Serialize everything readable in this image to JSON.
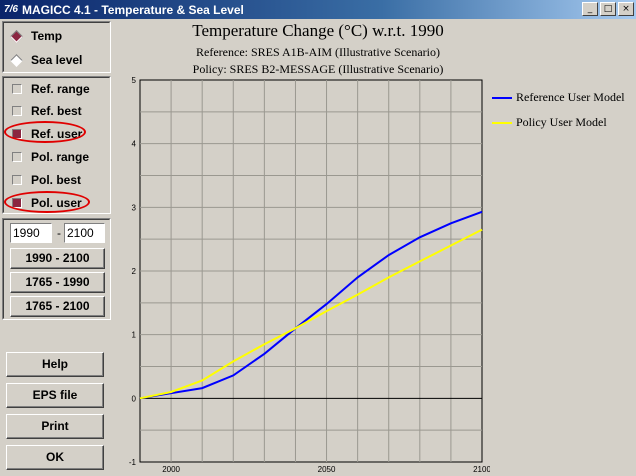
{
  "window": {
    "icon_text": "7/6",
    "title": "MAGICC 4.1 - Temperature & Sea Level",
    "min_glyph": "_",
    "max_glyph": "□",
    "close_glyph": "×"
  },
  "view_mode": {
    "options": [
      {
        "label": "Temp",
        "selected": true
      },
      {
        "label": "Sea level",
        "selected": false
      }
    ]
  },
  "series_toggles": [
    {
      "label": "Ref. range",
      "checked": false,
      "circled": false
    },
    {
      "label": "Ref. best",
      "checked": false,
      "circled": false
    },
    {
      "label": "Ref. user",
      "checked": true,
      "circled": true
    },
    {
      "label": "Pol. range",
      "checked": false,
      "circled": false
    },
    {
      "label": "Pol. best",
      "checked": false,
      "circled": false
    },
    {
      "label": "Pol. user",
      "checked": true,
      "circled": true
    }
  ],
  "year_range": {
    "start": "1990",
    "separator": "-",
    "end": "2100"
  },
  "range_buttons": [
    "1990 - 2100",
    "1765 - 1990",
    "1765 - 2100"
  ],
  "action_buttons": [
    "Help",
    "EPS file",
    "Print",
    "OK"
  ],
  "colors": {
    "reference": "#0000ff",
    "policy": "#ffff00",
    "highlight": "#e00000",
    "checked": "#8b2540"
  },
  "chart_data": {
    "type": "line",
    "title": "Temperature Change (°C) w.r.t. 1990",
    "subtitle_reference": "Reference: SRES A1B-AIM (Illustrative Scenario)",
    "subtitle_policy": "Policy: SRES B2-MESSAGE (Illustrative Scenario)",
    "xlim": [
      1990,
      2100
    ],
    "ylim": [
      -1,
      5
    ],
    "x_ticks": [
      "2000",
      "2050",
      "2100"
    ],
    "y_ticks": [
      "-1",
      "0",
      "1",
      "2",
      "3",
      "4",
      "5"
    ],
    "grid": true,
    "legend_placement": "right",
    "x": [
      1990,
      2000,
      2010,
      2020,
      2030,
      2040,
      2050,
      2060,
      2070,
      2080,
      2090,
      2100
    ],
    "series": [
      {
        "name": "Reference User Model",
        "color": "#0000ff",
        "values": [
          0.0,
          0.08,
          0.16,
          0.36,
          0.7,
          1.1,
          1.48,
          1.9,
          2.25,
          2.53,
          2.75,
          2.93
        ]
      },
      {
        "name": "Policy User Model",
        "color": "#ffff00",
        "values": [
          0.0,
          0.1,
          0.28,
          0.58,
          0.85,
          1.1,
          1.37,
          1.63,
          1.9,
          2.15,
          2.4,
          2.65
        ]
      }
    ]
  }
}
